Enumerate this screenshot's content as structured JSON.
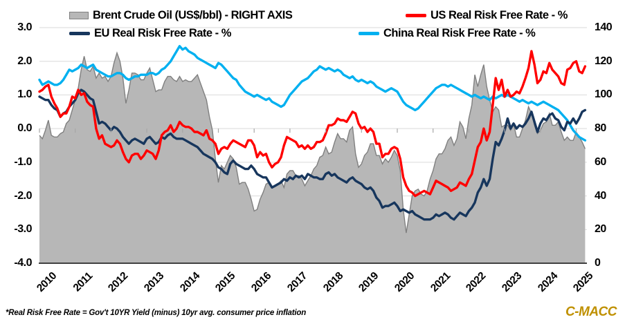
{
  "legend": {
    "brent": "Brent Crude Oil (US$/bbl) - RIGHT AXIS",
    "us": "US Real Risk Free Rate - %",
    "eu": "EU Real Risk Free Rate - %",
    "china": "China Real Risk Free Rate - %"
  },
  "colors": {
    "brent_fill": "#b7b7b7",
    "brent_border": "#7f7f7f",
    "us": "#ff0000",
    "eu": "#17365d",
    "china": "#00b0f0",
    "grid": "#d9d9d9",
    "axis_line": "#404040",
    "tick": "#a6a6a6",
    "brand": "#bf9000"
  },
  "axes": {
    "left": {
      "ticks": [
        "3.0",
        "2.0",
        "1.0",
        "0.0",
        "-1.0",
        "-2.0",
        "-3.0",
        "-4.0"
      ]
    },
    "right": {
      "ticks": [
        "140",
        "120",
        "100",
        "80",
        "60",
        "40",
        "20",
        "0"
      ]
    },
    "x": {
      "ticks": [
        "2010",
        "2011",
        "2012",
        "2013",
        "2014",
        "2015",
        "2016",
        "2017",
        "2018",
        "2019",
        "2020",
        "2021",
        "2022",
        "2023",
        "2024",
        "2025"
      ]
    }
  },
  "footer": {
    "footnote": "*Real Risk Free Rate = Gov't 10YR Yield (minus) 10yr avg. consumer price inflation",
    "brand": "C-MACC"
  },
  "chart_data": {
    "type": "line",
    "x_note": "monthly, Jan 2010 - Apr 2025",
    "x_start": 2010.0,
    "x_step": 0.0833333,
    "xlim": [
      2010.0,
      2025.3
    ],
    "left_ylim": [
      -4.0,
      3.0
    ],
    "right_ylim": [
      0,
      140
    ],
    "grid": "horizontal-only",
    "legend_position": "top",
    "series": [
      {
        "name": "Brent Crude Oil (US$/bbl)",
        "axis": "right",
        "style": "area",
        "fill": "#b7b7b7",
        "color": "#7f7f7f",
        "values": [
          76,
          74,
          79,
          85,
          76,
          75,
          75,
          77,
          78,
          83,
          85,
          91,
          97,
          104,
          115,
          123,
          115,
          114,
          117,
          110,
          113,
          110,
          111,
          108,
          111,
          119,
          125,
          120,
          110,
          95,
          103,
          113,
          113,
          112,
          109,
          109,
          113,
          116,
          109,
          102,
          103,
          103,
          108,
          111,
          111,
          109,
          108,
          111,
          108,
          109,
          108,
          108,
          110,
          112,
          107,
          102,
          97,
          87,
          79,
          62,
          48,
          58,
          56,
          60,
          64,
          62,
          57,
          47,
          48,
          48,
          44,
          38,
          31,
          32,
          38,
          42,
          47,
          48,
          45,
          46,
          47,
          49,
          45,
          53,
          55,
          55,
          52,
          52,
          50,
          46,
          49,
          52,
          56,
          58,
          63,
          64,
          69,
          65,
          66,
          72,
          77,
          74,
          74,
          72,
          79,
          81,
          65,
          57,
          59,
          64,
          66,
          71,
          71,
          64,
          64,
          59,
          62,
          60,
          63,
          67,
          64,
          55,
          32,
          18,
          29,
          40,
          43,
          44,
          41,
          40,
          43,
          50,
          55,
          62,
          65,
          65,
          68,
          73,
          75,
          70,
          74,
          84,
          81,
          74,
          86,
          94,
          112,
          105,
          112,
          118,
          105,
          97,
          90,
          93,
          91,
          81,
          82,
          82,
          79,
          83,
          75,
          75,
          80,
          85,
          93,
          89,
          82,
          77,
          79,
          83,
          84,
          89,
          82,
          82,
          84,
          78,
          73,
          75,
          73,
          73,
          78,
          75,
          72,
          68
        ]
      },
      {
        "name": "China Real Risk Free Rate - %",
        "axis": "left",
        "style": "line",
        "color": "#00b0f0",
        "values": [
          1.45,
          1.3,
          1.35,
          1.4,
          1.35,
          1.3,
          1.3,
          1.35,
          1.45,
          1.6,
          1.75,
          1.7,
          1.75,
          1.8,
          1.9,
          1.85,
          1.8,
          1.85,
          1.9,
          1.75,
          1.7,
          1.65,
          1.6,
          1.55,
          1.55,
          1.6,
          1.65,
          1.65,
          1.6,
          1.5,
          1.45,
          1.5,
          1.55,
          1.55,
          1.6,
          1.6,
          1.6,
          1.65,
          1.65,
          1.6,
          1.65,
          1.75,
          1.8,
          1.9,
          2.0,
          2.15,
          2.3,
          2.45,
          2.35,
          2.4,
          2.3,
          2.25,
          2.2,
          2.1,
          2.05,
          2.0,
          1.95,
          1.9,
          1.85,
          1.8,
          1.95,
          1.9,
          1.8,
          1.7,
          1.6,
          1.5,
          1.45,
          1.3,
          1.2,
          1.1,
          1.05,
          1.0,
          0.95,
          1.0,
          0.95,
          0.9,
          0.85,
          0.9,
          0.8,
          0.75,
          0.7,
          0.65,
          0.7,
          0.85,
          1.0,
          1.1,
          1.2,
          1.3,
          1.4,
          1.45,
          1.5,
          1.6,
          1.7,
          1.75,
          1.85,
          1.8,
          1.75,
          1.8,
          1.75,
          1.7,
          1.75,
          1.7,
          1.6,
          1.55,
          1.5,
          1.55,
          1.45,
          1.4,
          1.45,
          1.4,
          1.35,
          1.4,
          1.35,
          1.25,
          1.2,
          1.15,
          1.1,
          1.15,
          1.2,
          1.15,
          1.1,
          0.95,
          0.8,
          0.7,
          0.65,
          0.6,
          0.55,
          0.6,
          0.7,
          0.8,
          0.9,
          1.0,
          1.1,
          1.2,
          1.25,
          1.3,
          1.3,
          1.25,
          1.3,
          1.25,
          1.2,
          1.15,
          1.1,
          1.05,
          1.0,
          0.95,
          1.0,
          0.95,
          0.9,
          0.95,
          0.9,
          0.85,
          0.95,
          0.9,
          0.95,
          1.0,
          0.95,
          1.0,
          0.95,
          0.9,
          0.85,
          0.8,
          0.85,
          0.8,
          0.75,
          0.8,
          0.75,
          0.7,
          0.75,
          0.8,
          0.75,
          0.7,
          0.65,
          0.6,
          0.55,
          0.45,
          0.35,
          0.25,
          0.1,
          -0.05,
          -0.15,
          -0.25,
          -0.3,
          -0.35
        ]
      },
      {
        "name": "EU Real Risk Free Rate - %",
        "axis": "left",
        "style": "line",
        "color": "#17365d",
        "values": [
          0.95,
          0.9,
          0.85,
          0.85,
          0.7,
          0.6,
          0.55,
          0.35,
          0.45,
          0.5,
          0.65,
          0.75,
          0.85,
          1.05,
          1.15,
          1.1,
          1.0,
          0.9,
          0.85,
          0.5,
          0.15,
          0.2,
          0.15,
          0.05,
          -0.05,
          0.05,
          0.0,
          -0.1,
          -0.25,
          -0.35,
          -0.45,
          -0.35,
          -0.3,
          -0.35,
          -0.4,
          -0.45,
          -0.3,
          -0.25,
          -0.35,
          -0.45,
          -0.4,
          -0.25,
          -0.3,
          -0.2,
          -0.15,
          -0.25,
          -0.3,
          -0.3,
          -0.3,
          -0.35,
          -0.4,
          -0.45,
          -0.5,
          -0.55,
          -0.65,
          -0.75,
          -0.8,
          -0.85,
          -0.9,
          -1.0,
          -1.15,
          -1.2,
          -1.3,
          -1.35,
          -1.05,
          -0.95,
          -1.05,
          -1.1,
          -1.15,
          -1.2,
          -1.2,
          -1.1,
          -1.2,
          -1.35,
          -1.4,
          -1.45,
          -1.45,
          -1.6,
          -1.75,
          -1.7,
          -1.65,
          -1.6,
          -1.5,
          -1.55,
          -1.45,
          -1.5,
          -1.4,
          -1.45,
          -1.4,
          -1.5,
          -1.35,
          -1.4,
          -1.45,
          -1.45,
          -1.5,
          -1.5,
          -1.35,
          -1.3,
          -1.4,
          -1.35,
          -1.45,
          -1.5,
          -1.55,
          -1.6,
          -1.5,
          -1.45,
          -1.55,
          -1.6,
          -1.65,
          -1.75,
          -1.8,
          -1.75,
          -1.85,
          -2.05,
          -2.15,
          -2.35,
          -2.3,
          -2.3,
          -2.25,
          -2.2,
          -2.3,
          -2.45,
          -2.4,
          -2.45,
          -2.5,
          -2.45,
          -2.55,
          -2.6,
          -2.65,
          -2.7,
          -2.7,
          -2.7,
          -2.65,
          -2.55,
          -2.6,
          -2.55,
          -2.5,
          -2.55,
          -2.65,
          -2.7,
          -2.6,
          -2.5,
          -2.55,
          -2.6,
          -2.45,
          -2.35,
          -2.2,
          -1.9,
          -1.75,
          -1.5,
          -1.7,
          -1.5,
          -0.9,
          -0.4,
          -0.5,
          -0.3,
          -0.05,
          0.3,
          0.0,
          0.15,
          0.0,
          0.1,
          0.05,
          0.15,
          0.3,
          0.5,
          0.2,
          -0.1,
          0.15,
          0.3,
          0.25,
          0.4,
          0.45,
          0.3,
          0.25,
          0.05,
          -0.05,
          0.2,
          0.15,
          0.3,
          0.15,
          0.3,
          0.5,
          0.55
        ]
      },
      {
        "name": "US Real Risk Free Rate - %",
        "axis": "left",
        "style": "line",
        "color": "#ff0000",
        "values": [
          1.1,
          1.15,
          1.25,
          1.3,
          0.95,
          0.75,
          0.6,
          0.35,
          0.45,
          0.45,
          0.65,
          0.95,
          0.9,
          1.15,
          1.0,
          1.05,
          0.8,
          0.7,
          0.65,
          0.0,
          -0.3,
          -0.2,
          -0.45,
          -0.5,
          -0.55,
          -0.5,
          -0.35,
          -0.45,
          -0.7,
          -0.9,
          -1.0,
          -0.8,
          -0.75,
          -0.75,
          -0.9,
          -0.8,
          -0.65,
          -0.7,
          -0.75,
          -0.9,
          -0.65,
          -0.2,
          -0.1,
          -0.05,
          0.1,
          -0.1,
          0.0,
          0.2,
          0.1,
          0.05,
          0.05,
          0.0,
          -0.1,
          -0.1,
          -0.15,
          -0.2,
          -0.05,
          -0.3,
          -0.35,
          -0.45,
          -0.75,
          -0.6,
          -0.55,
          -0.6,
          -0.45,
          -0.35,
          -0.4,
          -0.45,
          -0.5,
          -0.55,
          -0.35,
          -0.35,
          -0.5,
          -0.85,
          -0.7,
          -0.8,
          -0.75,
          -1.0,
          -1.15,
          -1.05,
          -1.0,
          -0.85,
          -0.5,
          -0.25,
          -0.3,
          -0.35,
          -0.4,
          -0.55,
          -0.5,
          -0.6,
          -0.5,
          -0.6,
          -0.55,
          -0.4,
          -0.4,
          -0.35,
          -0.15,
          0.1,
          0.1,
          0.15,
          0.3,
          0.25,
          0.25,
          0.2,
          0.35,
          0.5,
          0.45,
          0.15,
          0.0,
          0.05,
          -0.1,
          0.0,
          -0.1,
          -0.45,
          -0.45,
          -0.85,
          -0.75,
          -0.75,
          -0.6,
          -0.55,
          -0.6,
          -0.9,
          -1.45,
          -1.7,
          -1.85,
          -1.9,
          -2.0,
          -1.95,
          -1.9,
          -1.85,
          -1.9,
          -1.95,
          -1.75,
          -1.55,
          -1.6,
          -1.65,
          -1.7,
          -1.75,
          -1.85,
          -1.8,
          -1.75,
          -1.6,
          -1.65,
          -1.7,
          -1.5,
          -1.35,
          -0.95,
          -0.55,
          -0.4,
          0.0,
          -0.35,
          -0.1,
          0.7,
          1.5,
          1.15,
          1.45,
          0.95,
          1.15,
          0.95,
          1.0,
          1.1,
          1.05,
          1.25,
          1.5,
          1.8,
          2.3,
          1.9,
          1.35,
          1.45,
          1.7,
          1.65,
          1.95,
          1.75,
          1.65,
          1.55,
          1.35,
          1.3,
          1.75,
          1.8,
          1.95,
          2.0,
          1.7,
          1.65,
          1.85
        ]
      }
    ]
  }
}
